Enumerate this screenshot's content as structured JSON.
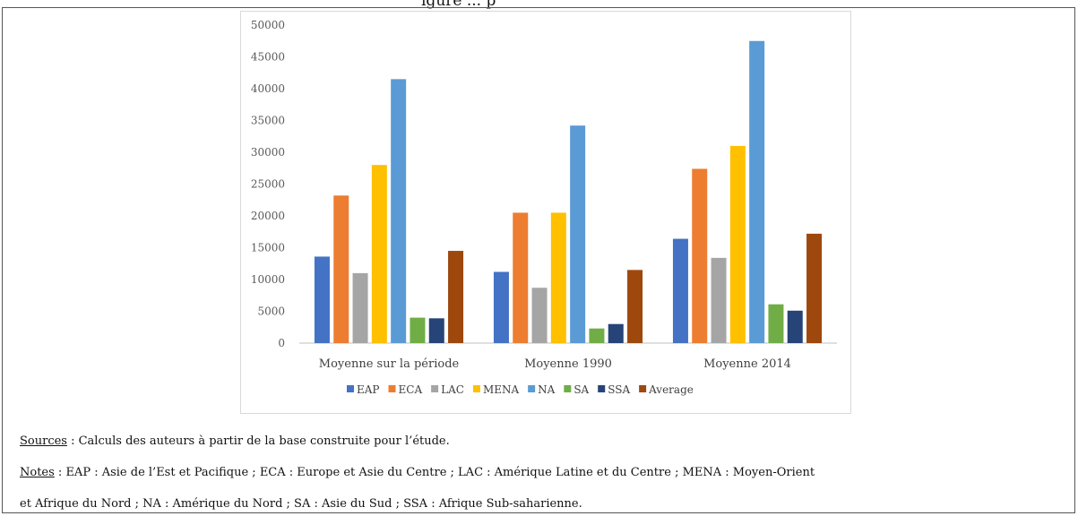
{
  "page": {
    "title_fragment": "igure ... p",
    "sources_label": "Sources",
    "sources_text": " : Calculs des auteurs à partir de la base construite pour l’étude.",
    "notes_label": "Notes",
    "notes_text_line1": " : EAP : Asie de l’Est et Pacifique ; ECA : Europe et Asie du Centre ; LAC : Amérique Latine et du Centre ; MENA : Moyen-Orient",
    "notes_text_line2": "et Afrique du Nord ; NA : Amérique du Nord ; SA : Asie du Sud ; SSA : Afrique Sub-saharienne."
  },
  "chart_data": {
    "type": "bar",
    "categories": [
      "Moyenne sur la période",
      "Moyenne 1990",
      "Moyenne 2014"
    ],
    "ylim": [
      0,
      50000
    ],
    "yticks": [
      0,
      5000,
      10000,
      15000,
      20000,
      25000,
      30000,
      35000,
      40000,
      45000,
      50000
    ],
    "grid": false,
    "legend": "bottom",
    "series": [
      {
        "name": "EAP",
        "color": "#4472c4",
        "values": [
          13600,
          11200,
          16400
        ]
      },
      {
        "name": "ECA",
        "color": "#ed7d31",
        "values": [
          23200,
          20500,
          27400
        ]
      },
      {
        "name": "LAC",
        "color": "#a5a5a5",
        "values": [
          11000,
          8700,
          13400
        ]
      },
      {
        "name": "MENA",
        "color": "#ffc000",
        "values": [
          28000,
          20500,
          31000
        ]
      },
      {
        "name": "NA",
        "color": "#5b9bd5",
        "values": [
          41500,
          34200,
          47500
        ]
      },
      {
        "name": "SA",
        "color": "#70ad47",
        "values": [
          4000,
          2300,
          6100
        ]
      },
      {
        "name": "SSA",
        "color": "#264478",
        "values": [
          3900,
          3000,
          5100
        ]
      },
      {
        "name": "Average",
        "color": "#9e480e",
        "values": [
          14500,
          11500,
          17200
        ]
      }
    ]
  }
}
